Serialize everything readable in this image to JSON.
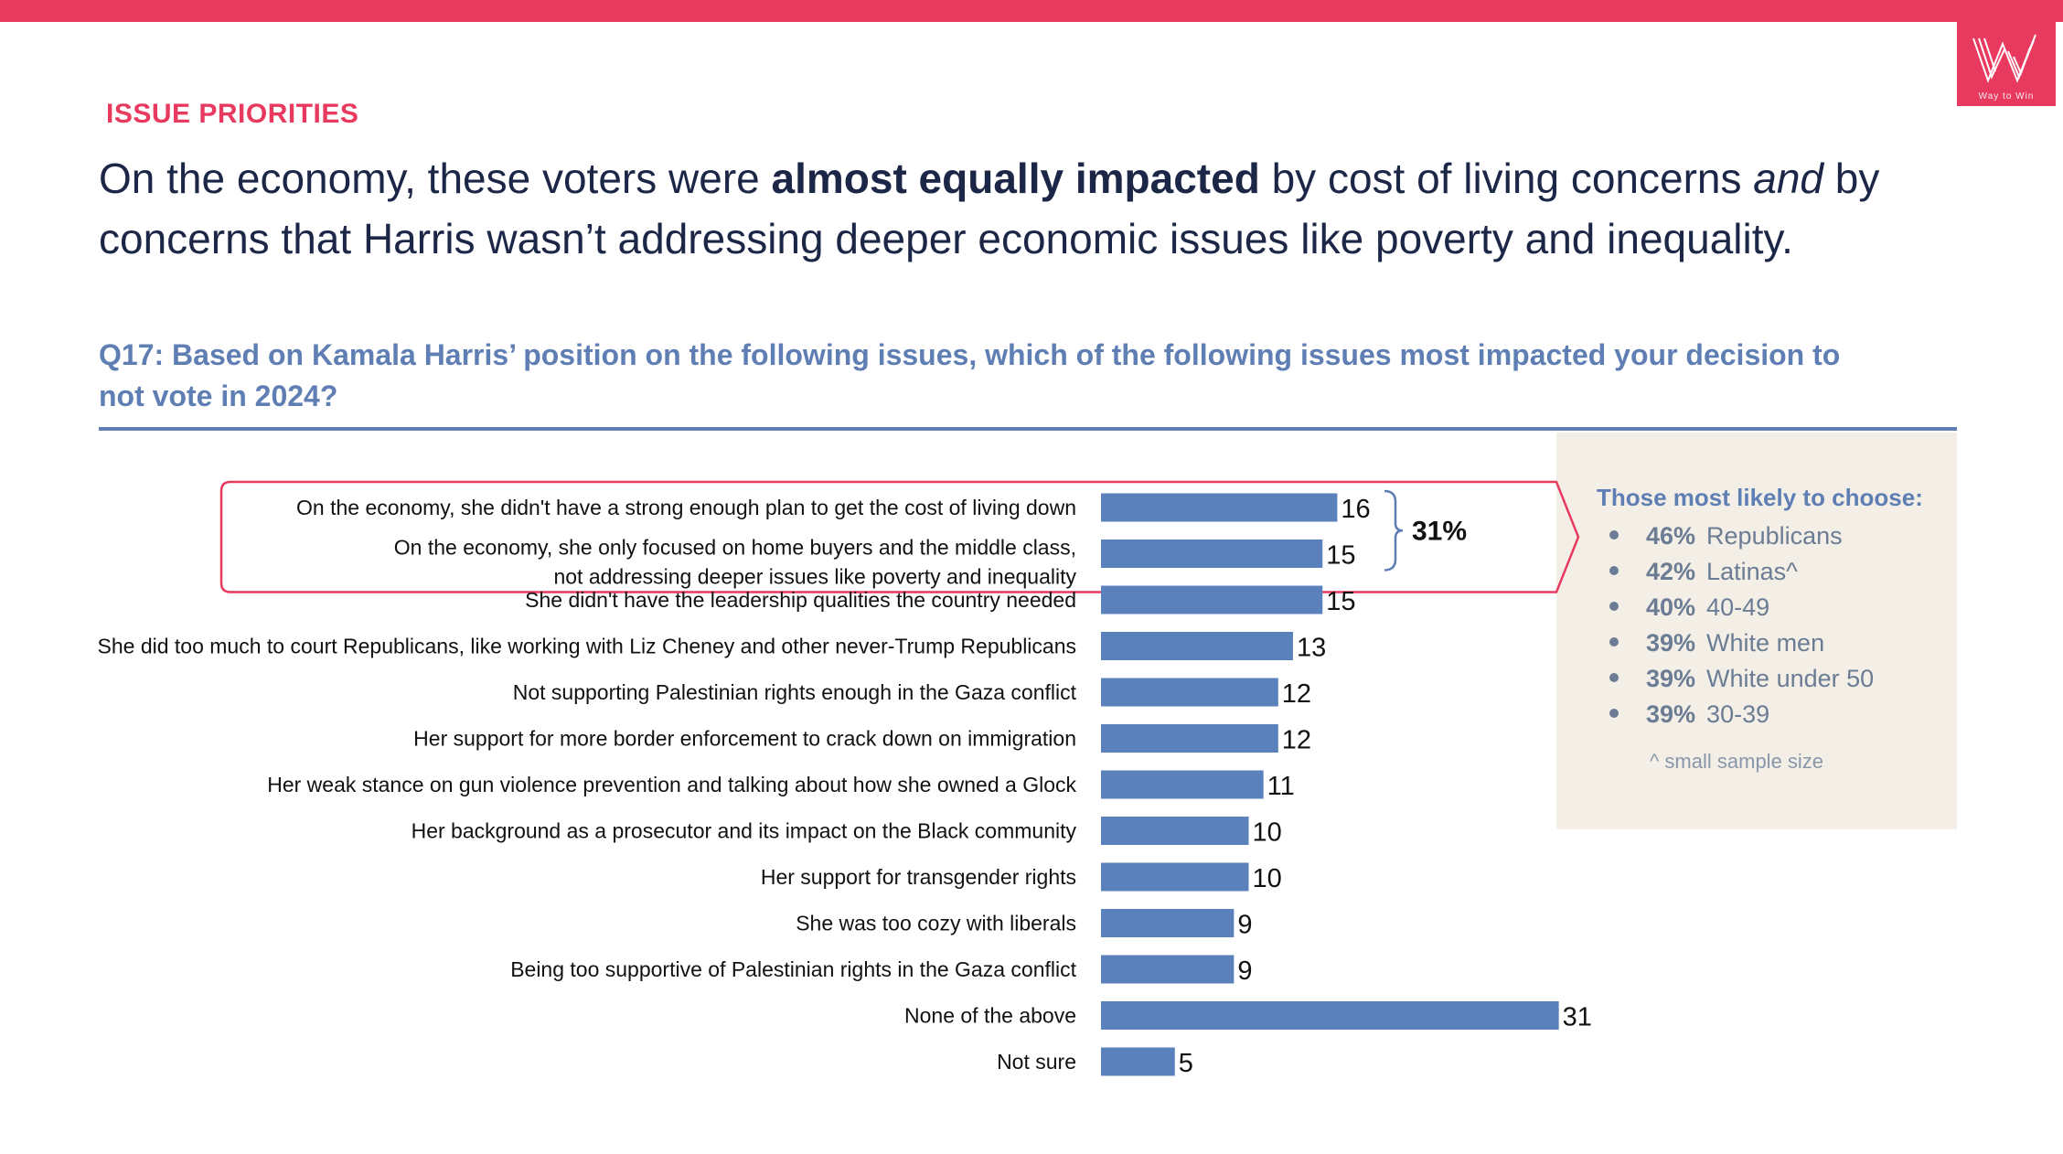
{
  "brand": {
    "accent": "#e8395f",
    "navy": "#1c2748",
    "blue": "#5f7fb4",
    "bar": "#5a81bb",
    "logo": "Way to Win"
  },
  "kicker": "ISSUE PRIORITIES",
  "headline": {
    "part1": "On the economy, these voters were ",
    "bold": "almost equally impacted",
    "part2": " by cost of living concerns ",
    "italic": "and",
    "part3": " by concerns that Harris wasn’t addressing deeper economic issues like poverty and inequality."
  },
  "question": "Q17: Based on Kamala Harris’ position on the following issues, which of the following issues most impacted your decision to not vote in 2024?",
  "sidebar": {
    "title": "Those most likely to choose:",
    "items": [
      {
        "pct": "46%",
        "label": "Republicans"
      },
      {
        "pct": "42%",
        "label": "Latinas^"
      },
      {
        "pct": "40%",
        "label": "40-49"
      },
      {
        "pct": "39%",
        "label": "White men"
      },
      {
        "pct": "39%",
        "label": "White under 50"
      },
      {
        "pct": "39%",
        "label": "30-39"
      }
    ],
    "note": "^ small sample size"
  },
  "chart_data": {
    "type": "bar",
    "orientation": "horizontal",
    "unit": "%",
    "xlim": [
      0,
      31
    ],
    "categories": [
      [
        "On the economy, she didn't have a strong enough plan to get the cost of living down"
      ],
      [
        "On the economy, she only focused on home buyers and the middle class,",
        "not addressing deeper issues like poverty and inequality"
      ],
      [
        "She didn't have the leadership qualities the country needed"
      ],
      [
        "She did too much to court Republicans, like working with Liz Cheney and other never-Trump Republicans"
      ],
      [
        "Not supporting Palestinian rights enough in the Gaza conflict"
      ],
      [
        "Her support for more border enforcement to crack down on immigration"
      ],
      [
        "Her weak stance on gun violence prevention and talking about how she owned a Glock"
      ],
      [
        "Her background as a prosecutor and its impact on the Black community"
      ],
      [
        "Her support for transgender rights"
      ],
      [
        "She was too cozy with liberals"
      ],
      [
        "Being too supportive of Palestinian rights in the Gaza conflict"
      ],
      [
        "None of the above"
      ],
      [
        "Not sure"
      ]
    ],
    "values": [
      16,
      15,
      15,
      13,
      12,
      12,
      11,
      10,
      10,
      9,
      9,
      31,
      5
    ],
    "highlight": {
      "rows": [
        0,
        1
      ],
      "combined_label": "31%"
    }
  }
}
